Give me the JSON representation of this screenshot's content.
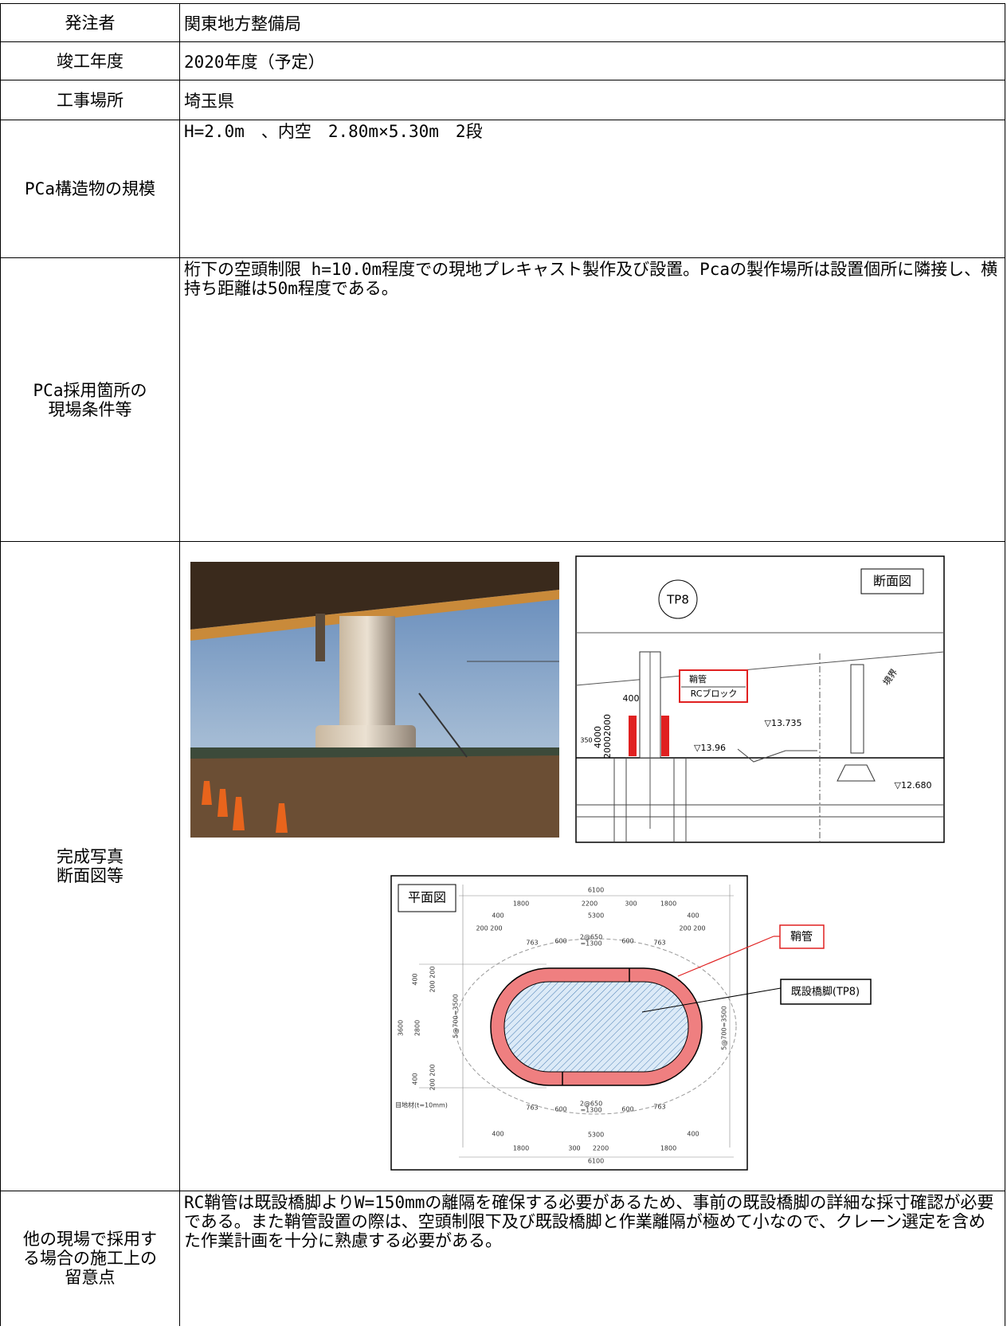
{
  "table": {
    "rows": [
      {
        "label": "発注者",
        "value": "関東地方整備局"
      },
      {
        "label": "竣工年度",
        "value": "2020年度（予定）"
      },
      {
        "label": "工事場所",
        "value": "埼玉県"
      },
      {
        "label": "PCa構造物の規模",
        "value": "H=2.0m　、内空　2.80m×5.30m　2段"
      },
      {
        "label": "PCa採用箇所の\n現場条件等",
        "value": "桁下の空頭制限 h=10.0m程度での現地プレキャスト製作及び設置。Pcaの製作場所は設置個所に隣接し、横持ち距離は50m程度である。"
      },
      {
        "label": "完成写真\n断面図等"
      },
      {
        "label": "他の現場で採用す\nる場合の施工上の\n留意点",
        "value": "RC鞘管は既設橋脚よりW=150mmの離隔を確保する必要があるため、事前の既設橋脚の詳細な採寸確認が必要である。また鞘管設置の際は、空頭制限下及び既設橋脚と作業離隔が極めて小なので、クレーン選定を含めた作業計画を十分に熟慮する必要がある。"
      }
    ]
  },
  "figures": {
    "section": {
      "title": "断面図",
      "pier": "TP8",
      "callout": [
        "鞘管",
        "RCブロック"
      ],
      "width": "400",
      "heights": [
        "4000",
        "2000",
        "2000",
        "350"
      ],
      "levels": [
        "▽13.735",
        "▽13.96",
        "▽12.680"
      ],
      "boundary": "境界"
    },
    "plan": {
      "title": "平面図",
      "top": [
        "6100",
        "1800",
        "2200",
        "300",
        "1800",
        "400",
        "5300",
        "400",
        "200 200",
        "200 200",
        "763",
        "600",
        "2@650",
        "=1300",
        "600",
        "763"
      ],
      "bottom": [
        "763",
        "600",
        "2@650",
        "=1300",
        "600",
        "763",
        "400",
        "5300",
        "400",
        "1800",
        "300",
        "2200",
        "1800",
        "6100"
      ],
      "side": [
        "3600",
        "2800",
        "400",
        "200 200",
        "400",
        "200 200",
        "5@700=3500",
        "5@700=3500"
      ],
      "joint": "目地材(t=10mm)",
      "labels": [
        "鞘管",
        "既設橋脚(TP8)"
      ]
    }
  }
}
